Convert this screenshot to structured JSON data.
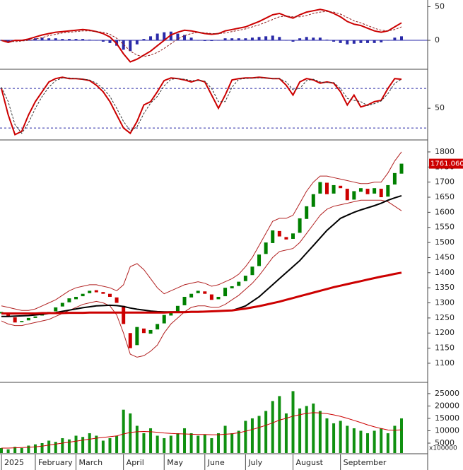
{
  "chart_data": [
    {
      "type": "line",
      "ylim": [
        -42,
        60
      ],
      "yticks": [
        0,
        50
      ],
      "series": [
        {
          "color": "#cc0000",
          "values": [
            0,
            -3,
            0,
            0,
            2,
            5,
            8,
            10,
            12,
            13,
            14,
            15,
            16,
            15,
            13,
            10,
            5,
            -5,
            -20,
            -32,
            -28,
            -22,
            -16,
            -8,
            0,
            8,
            12,
            15,
            14,
            12,
            10,
            9,
            10,
            14,
            16,
            18,
            20,
            24,
            28,
            33,
            38,
            40,
            36,
            33,
            38,
            42,
            44,
            46,
            44,
            40,
            35,
            28,
            24,
            22,
            18,
            14,
            12,
            14,
            20,
            26
          ]
        },
        {
          "color": "#8b1a1a",
          "dash": true,
          "values": [
            0,
            -1,
            -2,
            -1,
            0,
            2,
            4,
            7,
            9,
            11,
            12,
            13,
            14,
            14,
            13,
            12,
            9,
            3,
            -6,
            -16,
            -22,
            -24,
            -22,
            -18,
            -12,
            -5,
            2,
            7,
            10,
            12,
            11,
            10,
            10,
            11,
            13,
            15,
            17,
            20,
            23,
            27,
            31,
            35,
            36,
            35,
            35,
            37,
            40,
            42,
            43,
            42,
            39,
            34,
            29,
            26,
            22,
            18,
            15,
            14,
            16,
            20
          ]
        }
      ],
      "histogram": {
        "color": "#2a2aa8",
        "values": [
          0,
          -2,
          0,
          1,
          2,
          3,
          4,
          3,
          3,
          2,
          2,
          2,
          2,
          1,
          0,
          -2,
          -4,
          -8,
          -14,
          -16,
          -6,
          2,
          6,
          10,
          12,
          13,
          10,
          8,
          4,
          0,
          -1,
          -1,
          0,
          3,
          3,
          3,
          3,
          4,
          5,
          6,
          7,
          5,
          0,
          -2,
          3,
          5,
          4,
          4,
          1,
          -2,
          -4,
          -6,
          -5,
          -4,
          -4,
          -4,
          -3,
          0,
          4,
          6
        ]
      }
    },
    {
      "type": "line",
      "ylim": [
        3,
        107
      ],
      "yticks": [
        50
      ],
      "ref_lines": [
        20,
        80
      ],
      "series": [
        {
          "color": "#cc0000",
          "values": [
            80,
            40,
            10,
            15,
            40,
            60,
            75,
            90,
            95,
            97,
            95,
            95,
            94,
            92,
            85,
            75,
            60,
            40,
            20,
            12,
            30,
            55,
            60,
            75,
            92,
            96,
            95,
            93,
            90,
            93,
            90,
            70,
            50,
            70,
            93,
            95,
            96,
            96,
            97,
            96,
            95,
            95,
            85,
            70,
            90,
            95,
            93,
            88,
            90,
            88,
            75,
            55,
            70,
            52,
            55,
            60,
            62,
            80,
            95,
            94
          ]
        },
        {
          "color": "#333333",
          "dash": true,
          "values": [
            82,
            60,
            25,
            12,
            28,
            50,
            68,
            82,
            92,
            96,
            96,
            95,
            94,
            93,
            88,
            80,
            68,
            50,
            30,
            16,
            22,
            42,
            58,
            68,
            84,
            94,
            95,
            94,
            92,
            92,
            91,
            80,
            60,
            60,
            82,
            94,
            95,
            96,
            96,
            96,
            95,
            95,
            90,
            78,
            80,
            92,
            94,
            90,
            89,
            89,
            80,
            65,
            62,
            60,
            54,
            57,
            61,
            72,
            88,
            94
          ]
        }
      ]
    },
    {
      "type": "candlestick",
      "ylim": [
        1039,
        1835
      ],
      "yticks": [
        1100,
        1150,
        1200,
        1250,
        1300,
        1350,
        1400,
        1450,
        1500,
        1550,
        1600,
        1650,
        1700,
        1750,
        1800
      ],
      "up_color": "#008000",
      "down_color": "#cc0000",
      "open": [
        1265,
        1268,
        1252,
        1236,
        1242,
        1250,
        1258,
        1266,
        1272,
        1288,
        1302,
        1312,
        1322,
        1332,
        1342,
        1336,
        1330,
        1318,
        1290,
        1200,
        1160,
        1215,
        1198,
        1212,
        1232,
        1258,
        1272,
        1292,
        1318,
        1332,
        1338,
        1328,
        1312,
        1322,
        1348,
        1356,
        1372,
        1392,
        1422,
        1462,
        1498,
        1538,
        1518,
        1512,
        1532,
        1578,
        1618,
        1662,
        1698,
        1662,
        1688,
        1678,
        1642,
        1668,
        1678,
        1662,
        1678,
        1652,
        1692,
        1728
      ],
      "close": [
        1270,
        1255,
        1235,
        1240,
        1250,
        1255,
        1265,
        1270,
        1285,
        1300,
        1315,
        1320,
        1330,
        1340,
        1335,
        1330,
        1320,
        1300,
        1230,
        1150,
        1220,
        1200,
        1210,
        1230,
        1260,
        1270,
        1290,
        1320,
        1330,
        1340,
        1330,
        1310,
        1320,
        1350,
        1355,
        1370,
        1390,
        1420,
        1460,
        1500,
        1540,
        1520,
        1510,
        1530,
        1580,
        1620,
        1660,
        1700,
        1660,
        1690,
        1680,
        1640,
        1670,
        1680,
        1660,
        1680,
        1650,
        1690,
        1730,
        1761.06
      ],
      "last_price": {
        "value": 1761.06,
        "label": "1761.060"
      },
      "series": [
        {
          "color": "#000000",
          "width": 2,
          "values": [
            1255,
            1255,
            1256,
            1257,
            1258,
            1260,
            1262,
            1265,
            1268,
            1272,
            1276,
            1280,
            1284,
            1287,
            1290,
            1291,
            1292,
            1291,
            1288,
            1283,
            1279,
            1276,
            1273,
            1271,
            1270,
            1270,
            1270,
            1270,
            1271,
            1271,
            1272,
            1272,
            1273,
            1274,
            1275,
            1282,
            1290,
            1305,
            1320,
            1340,
            1360,
            1380,
            1400,
            1420,
            1440,
            1465,
            1490,
            1515,
            1540,
            1560,
            1580,
            1590,
            1600,
            1608,
            1615,
            1622,
            1630,
            1640,
            1648,
            1655
          ]
        },
        {
          "color": "#cc0000",
          "width": 3,
          "values": [
            1265,
            1265,
            1265,
            1265,
            1265,
            1265,
            1266,
            1266,
            1266,
            1266,
            1267,
            1267,
            1267,
            1268,
            1268,
            1268,
            1268,
            1268,
            1268,
            1268,
            1268,
            1268,
            1268,
            1268,
            1268,
            1269,
            1269,
            1269,
            1270,
            1270,
            1271,
            1272,
            1273,
            1274,
            1275,
            1278,
            1281,
            1285,
            1289,
            1294,
            1299,
            1304,
            1310,
            1316,
            1322,
            1328,
            1334,
            1340,
            1346,
            1352,
            1357,
            1362,
            1367,
            1372,
            1377,
            1382,
            1387,
            1391,
            1396,
            1400
          ]
        },
        {
          "color": "#b22222",
          "width": 1,
          "values": [
            1290,
            1285,
            1280,
            1275,
            1275,
            1280,
            1290,
            1300,
            1310,
            1325,
            1340,
            1350,
            1355,
            1360,
            1360,
            1355,
            1350,
            1340,
            1360,
            1420,
            1430,
            1410,
            1380,
            1350,
            1330,
            1340,
            1350,
            1360,
            1365,
            1370,
            1365,
            1355,
            1360,
            1370,
            1380,
            1395,
            1420,
            1450,
            1490,
            1530,
            1570,
            1580,
            1580,
            1590,
            1630,
            1670,
            1700,
            1720,
            1720,
            1715,
            1710,
            1705,
            1700,
            1695,
            1695,
            1700,
            1700,
            1730,
            1770,
            1800
          ]
        },
        {
          "color": "#b22222",
          "width": 1,
          "values": [
            1240,
            1230,
            1225,
            1225,
            1230,
            1235,
            1240,
            1245,
            1255,
            1265,
            1275,
            1285,
            1295,
            1300,
            1305,
            1300,
            1290,
            1260,
            1200,
            1130,
            1120,
            1125,
            1140,
            1160,
            1200,
            1230,
            1250,
            1270,
            1285,
            1290,
            1290,
            1285,
            1285,
            1295,
            1310,
            1325,
            1345,
            1365,
            1390,
            1420,
            1450,
            1470,
            1475,
            1480,
            1500,
            1530,
            1560,
            1590,
            1610,
            1620,
            1625,
            1630,
            1635,
            1640,
            1640,
            1640,
            1640,
            1635,
            1620,
            1605
          ]
        }
      ]
    },
    {
      "type": "bar",
      "ylim": [
        1000,
        28400
      ],
      "yticks": [
        5000,
        10000,
        15000,
        20000,
        25000
      ],
      "unit_label": "x100000",
      "color": "#109010",
      "categories": [
        "2025",
        null,
        null,
        null,
        null,
        "February",
        null,
        null,
        null,
        null,
        null,
        "March",
        null,
        null,
        null,
        null,
        null,
        null,
        "April",
        null,
        null,
        null,
        null,
        null,
        "May",
        null,
        null,
        null,
        null,
        null,
        "June",
        null,
        null,
        null,
        null,
        null,
        "July",
        null,
        null,
        null,
        null,
        null,
        null,
        "August",
        null,
        null,
        null,
        null,
        null,
        null,
        "September",
        null,
        null,
        null,
        null,
        null,
        null,
        null,
        null,
        null
      ],
      "values": [
        3000,
        2500,
        3500,
        3000,
        4000,
        4500,
        5000,
        6000,
        5500,
        7000,
        6500,
        8000,
        7500,
        9000,
        8000,
        6000,
        7000,
        8000,
        18500,
        17000,
        12000,
        9000,
        11000,
        8000,
        7000,
        8000,
        9000,
        11000,
        9000,
        8000,
        8500,
        7000,
        9000,
        12000,
        9000,
        10000,
        14000,
        15000,
        16000,
        18000,
        22000,
        24000,
        17000,
        26000,
        19000,
        20000,
        21000,
        18000,
        15000,
        13000,
        14000,
        12000,
        11000,
        10000,
        9000,
        10000,
        11000,
        9000,
        12000,
        15000
      ],
      "series": [
        {
          "color": "#cc0000",
          "width": 1,
          "values": [
            3000,
            3000,
            3100,
            3200,
            3300,
            3500,
            3800,
            4200,
            4600,
            5000,
            5400,
            5800,
            6200,
            6600,
            7000,
            7300,
            7600,
            7900,
            8700,
            9300,
            9600,
            9700,
            9600,
            9400,
            9100,
            8900,
            8800,
            8700,
            8600,
            8500,
            8500,
            8400,
            8400,
            8600,
            8800,
            9200,
            9800,
            10500,
            11300,
            12200,
            13200,
            14300,
            15000,
            15900,
            16500,
            17000,
            17300,
            17200,
            16900,
            16400,
            15800,
            15000,
            14200,
            13300,
            12400,
            11600,
            10900,
            10300,
            10200,
            10400
          ]
        }
      ]
    }
  ]
}
